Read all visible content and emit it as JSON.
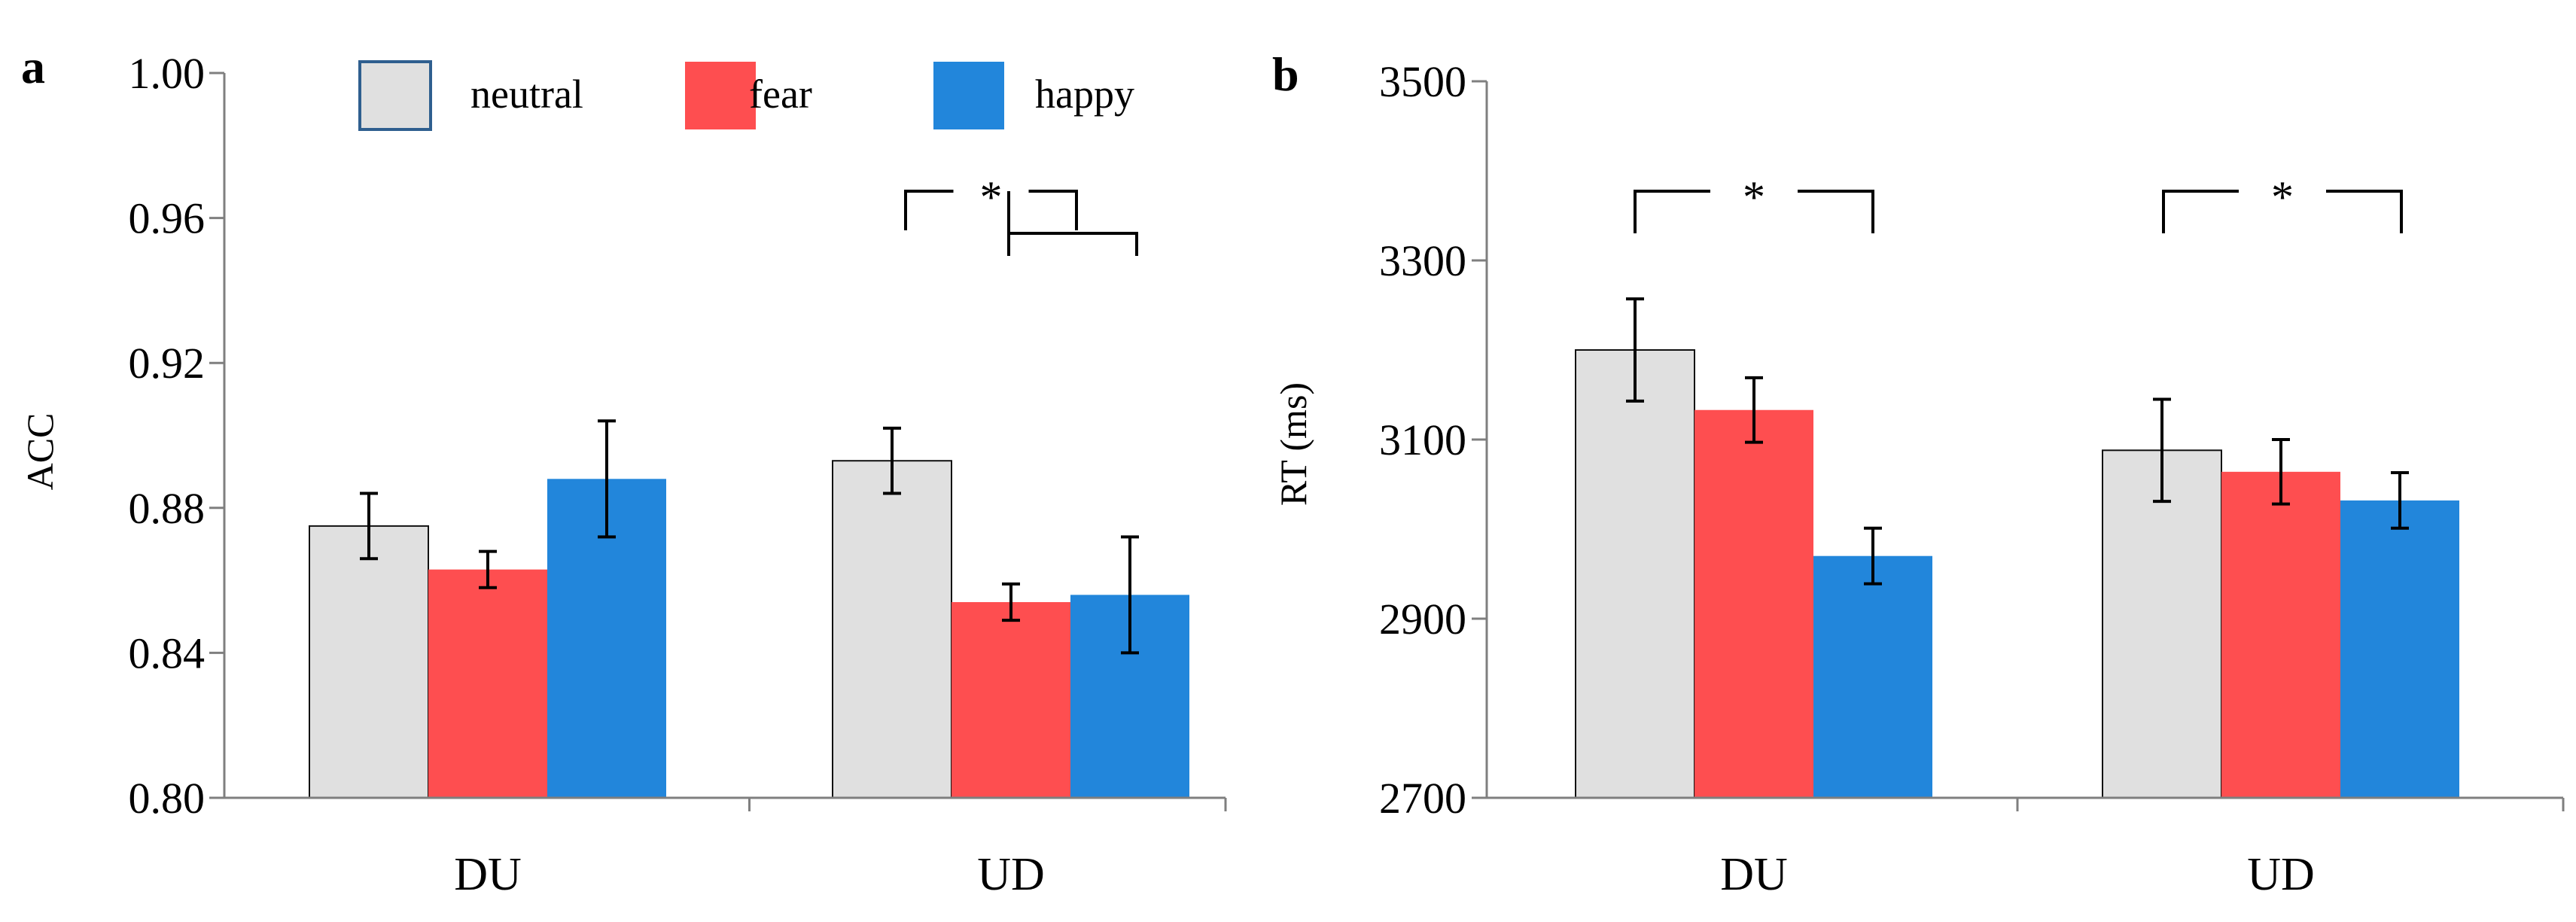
{
  "legend": [
    {
      "label": "neutral",
      "color": "#e0e0e0",
      "stroke": "#2f5f8f"
    },
    {
      "label": "fear",
      "color": "#fe4e50"
    },
    {
      "label": "happy",
      "color": "#2286db"
    }
  ],
  "significance_marker": "*",
  "chart_data": [
    {
      "panel_label": "a",
      "type": "bar",
      "ylabel": "ACC",
      "ylim": [
        0.8,
        1.0
      ],
      "yticks": [
        "0.80",
        "0.84",
        "0.88",
        "0.92",
        "0.96",
        "1.00"
      ],
      "categories": [
        "DU",
        "UD"
      ],
      "series": [
        {
          "name": "neutral",
          "values": [
            0.875,
            0.893
          ],
          "errors": [
            0.009,
            0.009
          ]
        },
        {
          "name": "fear",
          "values": [
            0.863,
            0.854
          ],
          "errors": [
            0.005,
            0.005
          ]
        },
        {
          "name": "happy",
          "values": [
            0.888,
            0.856
          ],
          "errors": [
            0.016,
            0.016
          ]
        }
      ],
      "grid": false,
      "legend_position": "top"
    },
    {
      "panel_label": "b",
      "type": "bar",
      "ylabel": "RT (ms)",
      "ylim": [
        2700,
        3500
      ],
      "yticks": [
        "2700",
        "2900",
        "3100",
        "3300",
        "3500"
      ],
      "categories": [
        "DU",
        "UD"
      ],
      "series": [
        {
          "name": "neutral",
          "values": [
            3200,
            3088
          ],
          "errors": [
            57,
            57
          ]
        },
        {
          "name": "fear",
          "values": [
            3133,
            3064
          ],
          "errors": [
            36,
            36
          ]
        },
        {
          "name": "happy",
          "values": [
            2970,
            3032
          ],
          "errors": [
            31,
            31
          ]
        }
      ],
      "grid": false
    }
  ]
}
